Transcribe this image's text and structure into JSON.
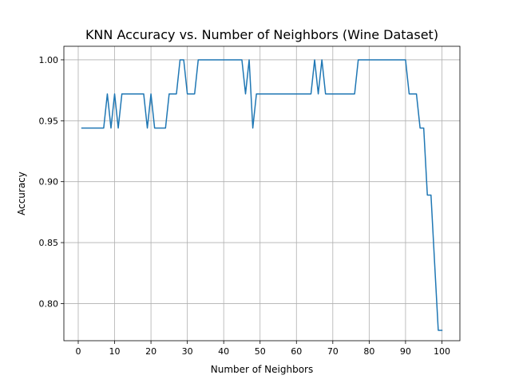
{
  "chart_data": {
    "type": "line",
    "title": "KNN Accuracy vs. Number of Neighbors (Wine Dataset)",
    "xlabel": "Number of Neighbors",
    "ylabel": "Accuracy",
    "xlim": [
      -3.95,
      104.95
    ],
    "ylim": [
      0.7695,
      1.0111
    ],
    "xticks": [
      0,
      10,
      20,
      30,
      40,
      50,
      60,
      70,
      80,
      90,
      100
    ],
    "xtick_labels": [
      "0",
      "10",
      "20",
      "30",
      "40",
      "50",
      "60",
      "70",
      "80",
      "90",
      "100"
    ],
    "yticks": [
      0.8,
      0.85,
      0.9,
      0.95,
      1.0
    ],
    "ytick_labels": [
      "0.80",
      "0.85",
      "0.90",
      "0.95",
      "1.00"
    ],
    "grid": true,
    "line_color": "#1f77b4",
    "series": [
      {
        "x": [
          1,
          2,
          3,
          4,
          5,
          6,
          7,
          8,
          9,
          10,
          11,
          12,
          13,
          14,
          15,
          16,
          17,
          18,
          19,
          20,
          21,
          22,
          23,
          24,
          25,
          26,
          27,
          28,
          29,
          30,
          31,
          32,
          33,
          34,
          35,
          36,
          37,
          38,
          39,
          40,
          41,
          42,
          43,
          44,
          45,
          46,
          47,
          48,
          49,
          50,
          51,
          52,
          53,
          54,
          55,
          56,
          57,
          58,
          59,
          60,
          61,
          62,
          63,
          64,
          65,
          66,
          67,
          68,
          69,
          70,
          71,
          72,
          73,
          74,
          75,
          76,
          77,
          78,
          79,
          80,
          81,
          82,
          83,
          84,
          85,
          86,
          87,
          88,
          89,
          90,
          91,
          92,
          93,
          94,
          95,
          96,
          97,
          98,
          99,
          100
        ],
        "y": [
          0.944,
          0.944,
          0.944,
          0.944,
          0.944,
          0.944,
          0.944,
          0.972,
          0.944,
          0.972,
          0.944,
          0.972,
          0.972,
          0.972,
          0.972,
          0.972,
          0.972,
          0.972,
          0.944,
          0.972,
          0.944,
          0.944,
          0.944,
          0.944,
          0.972,
          0.972,
          0.972,
          1.0,
          1.0,
          0.972,
          0.972,
          0.972,
          1.0,
          1.0,
          1.0,
          1.0,
          1.0,
          1.0,
          1.0,
          1.0,
          1.0,
          1.0,
          1.0,
          1.0,
          1.0,
          0.972,
          1.0,
          0.944,
          0.972,
          0.972,
          0.972,
          0.972,
          0.972,
          0.972,
          0.972,
          0.972,
          0.972,
          0.972,
          0.972,
          0.972,
          0.972,
          0.972,
          0.972,
          0.972,
          1.0,
          0.972,
          1.0,
          0.972,
          0.972,
          0.972,
          0.972,
          0.972,
          0.972,
          0.972,
          0.972,
          0.972,
          1.0,
          1.0,
          1.0,
          1.0,
          1.0,
          1.0,
          1.0,
          1.0,
          1.0,
          1.0,
          1.0,
          1.0,
          1.0,
          1.0,
          0.972,
          0.972,
          0.972,
          0.944,
          0.944,
          0.889,
          0.889,
          0.833,
          0.778,
          0.778
        ]
      }
    ]
  }
}
